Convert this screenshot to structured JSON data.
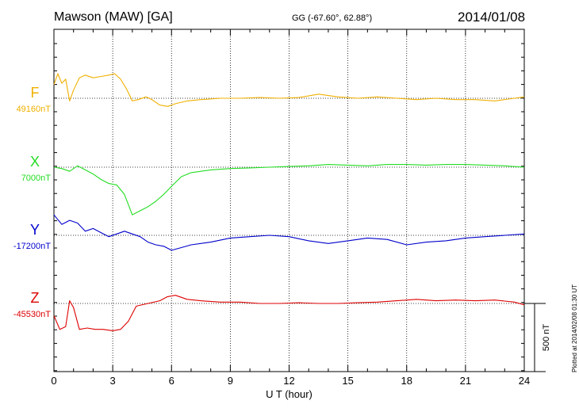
{
  "header": {
    "station": "Mawson (MAW)  [GA]",
    "coords": "GG (-67.60°,  62.88°)",
    "date": "2014/01/08"
  },
  "footer": {
    "plotted": "Plotted at 2014/02/08 01:30 UT"
  },
  "colors": {
    "F": "#f0b000",
    "X": "#22dd22",
    "Y": "#0000cc",
    "Z": "#dd0000"
  },
  "chart_data": {
    "type": "line",
    "xlabel": "U T (hour)",
    "xlim": [
      0,
      24
    ],
    "x_ticks": [
      "0",
      "3",
      "6",
      "9",
      "12",
      "15",
      "18",
      "21",
      "24"
    ],
    "scale_bar": {
      "label": "500 nT",
      "value_nT": 500
    },
    "series": [
      {
        "name": "F",
        "baseline_label": "49160nT",
        "baseline_nT": 49160,
        "points": [
          [
            0,
            49260
          ],
          [
            0.2,
            49340
          ],
          [
            0.4,
            49270
          ],
          [
            0.6,
            49300
          ],
          [
            0.8,
            49140
          ],
          [
            1.0,
            49220
          ],
          [
            1.3,
            49310
          ],
          [
            1.6,
            49330
          ],
          [
            2.0,
            49310
          ],
          [
            2.4,
            49320
          ],
          [
            2.8,
            49330
          ],
          [
            3.1,
            49340
          ],
          [
            3.4,
            49300
          ],
          [
            3.7,
            49230
          ],
          [
            4.0,
            49140
          ],
          [
            4.3,
            49150
          ],
          [
            4.7,
            49170
          ],
          [
            5.0,
            49150
          ],
          [
            5.4,
            49110
          ],
          [
            5.8,
            49100
          ],
          [
            6.2,
            49120
          ],
          [
            6.8,
            49140
          ],
          [
            7.5,
            49150
          ],
          [
            8.5,
            49160
          ],
          [
            9.5,
            49160
          ],
          [
            10.5,
            49165
          ],
          [
            11.5,
            49160
          ],
          [
            12.5,
            49165
          ],
          [
            13.5,
            49190
          ],
          [
            14.5,
            49170
          ],
          [
            15.5,
            49160
          ],
          [
            16.5,
            49170
          ],
          [
            17.5,
            49160
          ],
          [
            18.5,
            49150
          ],
          [
            19.5,
            49160
          ],
          [
            20.5,
            49150
          ],
          [
            21.5,
            49150
          ],
          [
            22.5,
            49140
          ],
          [
            23.5,
            49160
          ],
          [
            24,
            49170
          ]
        ]
      },
      {
        "name": "X",
        "baseline_label": "7000nT",
        "baseline_nT": 7000,
        "points": [
          [
            0,
            7000
          ],
          [
            0.4,
            6990
          ],
          [
            0.8,
            6970
          ],
          [
            1.2,
            7010
          ],
          [
            1.6,
            6980
          ],
          [
            2.0,
            6950
          ],
          [
            2.4,
            6910
          ],
          [
            2.8,
            6880
          ],
          [
            3.2,
            6870
          ],
          [
            3.6,
            6800
          ],
          [
            4.0,
            6650
          ],
          [
            4.4,
            6680
          ],
          [
            4.8,
            6710
          ],
          [
            5.2,
            6750
          ],
          [
            5.6,
            6800
          ],
          [
            6.0,
            6860
          ],
          [
            6.5,
            6930
          ],
          [
            7.0,
            6960
          ],
          [
            8.0,
            6980
          ],
          [
            9.0,
            6990
          ],
          [
            10.0,
            6995
          ],
          [
            11.0,
            7000
          ],
          [
            12.0,
            7005
          ],
          [
            13.0,
            7010
          ],
          [
            14.0,
            7020
          ],
          [
            15.0,
            7015
          ],
          [
            16.0,
            7010
          ],
          [
            17.0,
            7020
          ],
          [
            18.0,
            7020
          ],
          [
            19.0,
            7015
          ],
          [
            20.0,
            7020
          ],
          [
            21.0,
            7020
          ],
          [
            22.0,
            7015
          ],
          [
            23.0,
            7010
          ],
          [
            24,
            7000
          ]
        ]
      },
      {
        "name": "Y",
        "baseline_label": "-17200nT",
        "baseline_nT": -17200,
        "points": [
          [
            0,
            -17050
          ],
          [
            0.4,
            -17120
          ],
          [
            0.8,
            -17090
          ],
          [
            1.2,
            -17110
          ],
          [
            1.6,
            -17170
          ],
          [
            2.0,
            -17150
          ],
          [
            2.4,
            -17180
          ],
          [
            2.8,
            -17210
          ],
          [
            3.2,
            -17190
          ],
          [
            3.6,
            -17170
          ],
          [
            4.0,
            -17190
          ],
          [
            4.4,
            -17210
          ],
          [
            4.8,
            -17250
          ],
          [
            5.2,
            -17270
          ],
          [
            5.6,
            -17280
          ],
          [
            6.0,
            -17310
          ],
          [
            6.5,
            -17290
          ],
          [
            7.0,
            -17270
          ],
          [
            8.0,
            -17250
          ],
          [
            9.0,
            -17220
          ],
          [
            10.0,
            -17210
          ],
          [
            11.0,
            -17200
          ],
          [
            12.0,
            -17210
          ],
          [
            13.0,
            -17240
          ],
          [
            14.0,
            -17260
          ],
          [
            15.0,
            -17240
          ],
          [
            16.0,
            -17220
          ],
          [
            17.0,
            -17230
          ],
          [
            18.0,
            -17270
          ],
          [
            19.0,
            -17250
          ],
          [
            20.0,
            -17240
          ],
          [
            21.0,
            -17220
          ],
          [
            22.0,
            -17210
          ],
          [
            23.0,
            -17200
          ],
          [
            24,
            -17190
          ]
        ]
      },
      {
        "name": "Z",
        "baseline_label": "-45530nT",
        "baseline_nT": -45530,
        "points": [
          [
            0,
            -45620
          ],
          [
            0.3,
            -45720
          ],
          [
            0.6,
            -45700
          ],
          [
            0.8,
            -45510
          ],
          [
            1.0,
            -45560
          ],
          [
            1.3,
            -45720
          ],
          [
            1.7,
            -45710
          ],
          [
            2.1,
            -45720
          ],
          [
            2.5,
            -45720
          ],
          [
            3.0,
            -45730
          ],
          [
            3.4,
            -45720
          ],
          [
            3.8,
            -45660
          ],
          [
            4.2,
            -45550
          ],
          [
            4.8,
            -45530
          ],
          [
            5.4,
            -45510
          ],
          [
            5.8,
            -45480
          ],
          [
            6.2,
            -45470
          ],
          [
            6.8,
            -45500
          ],
          [
            7.5,
            -45510
          ],
          [
            8.5,
            -45520
          ],
          [
            9.5,
            -45520
          ],
          [
            10.5,
            -45530
          ],
          [
            11.5,
            -45530
          ],
          [
            12.5,
            -45525
          ],
          [
            13.5,
            -45530
          ],
          [
            14.5,
            -45530
          ],
          [
            15.5,
            -45525
          ],
          [
            16.5,
            -45520
          ],
          [
            17.5,
            -45510
          ],
          [
            18.5,
            -45500
          ],
          [
            19.5,
            -45510
          ],
          [
            20.5,
            -45505
          ],
          [
            21.5,
            -45510
          ],
          [
            22.5,
            -45505
          ],
          [
            23.5,
            -45520
          ],
          [
            24,
            -45540
          ]
        ]
      }
    ]
  }
}
